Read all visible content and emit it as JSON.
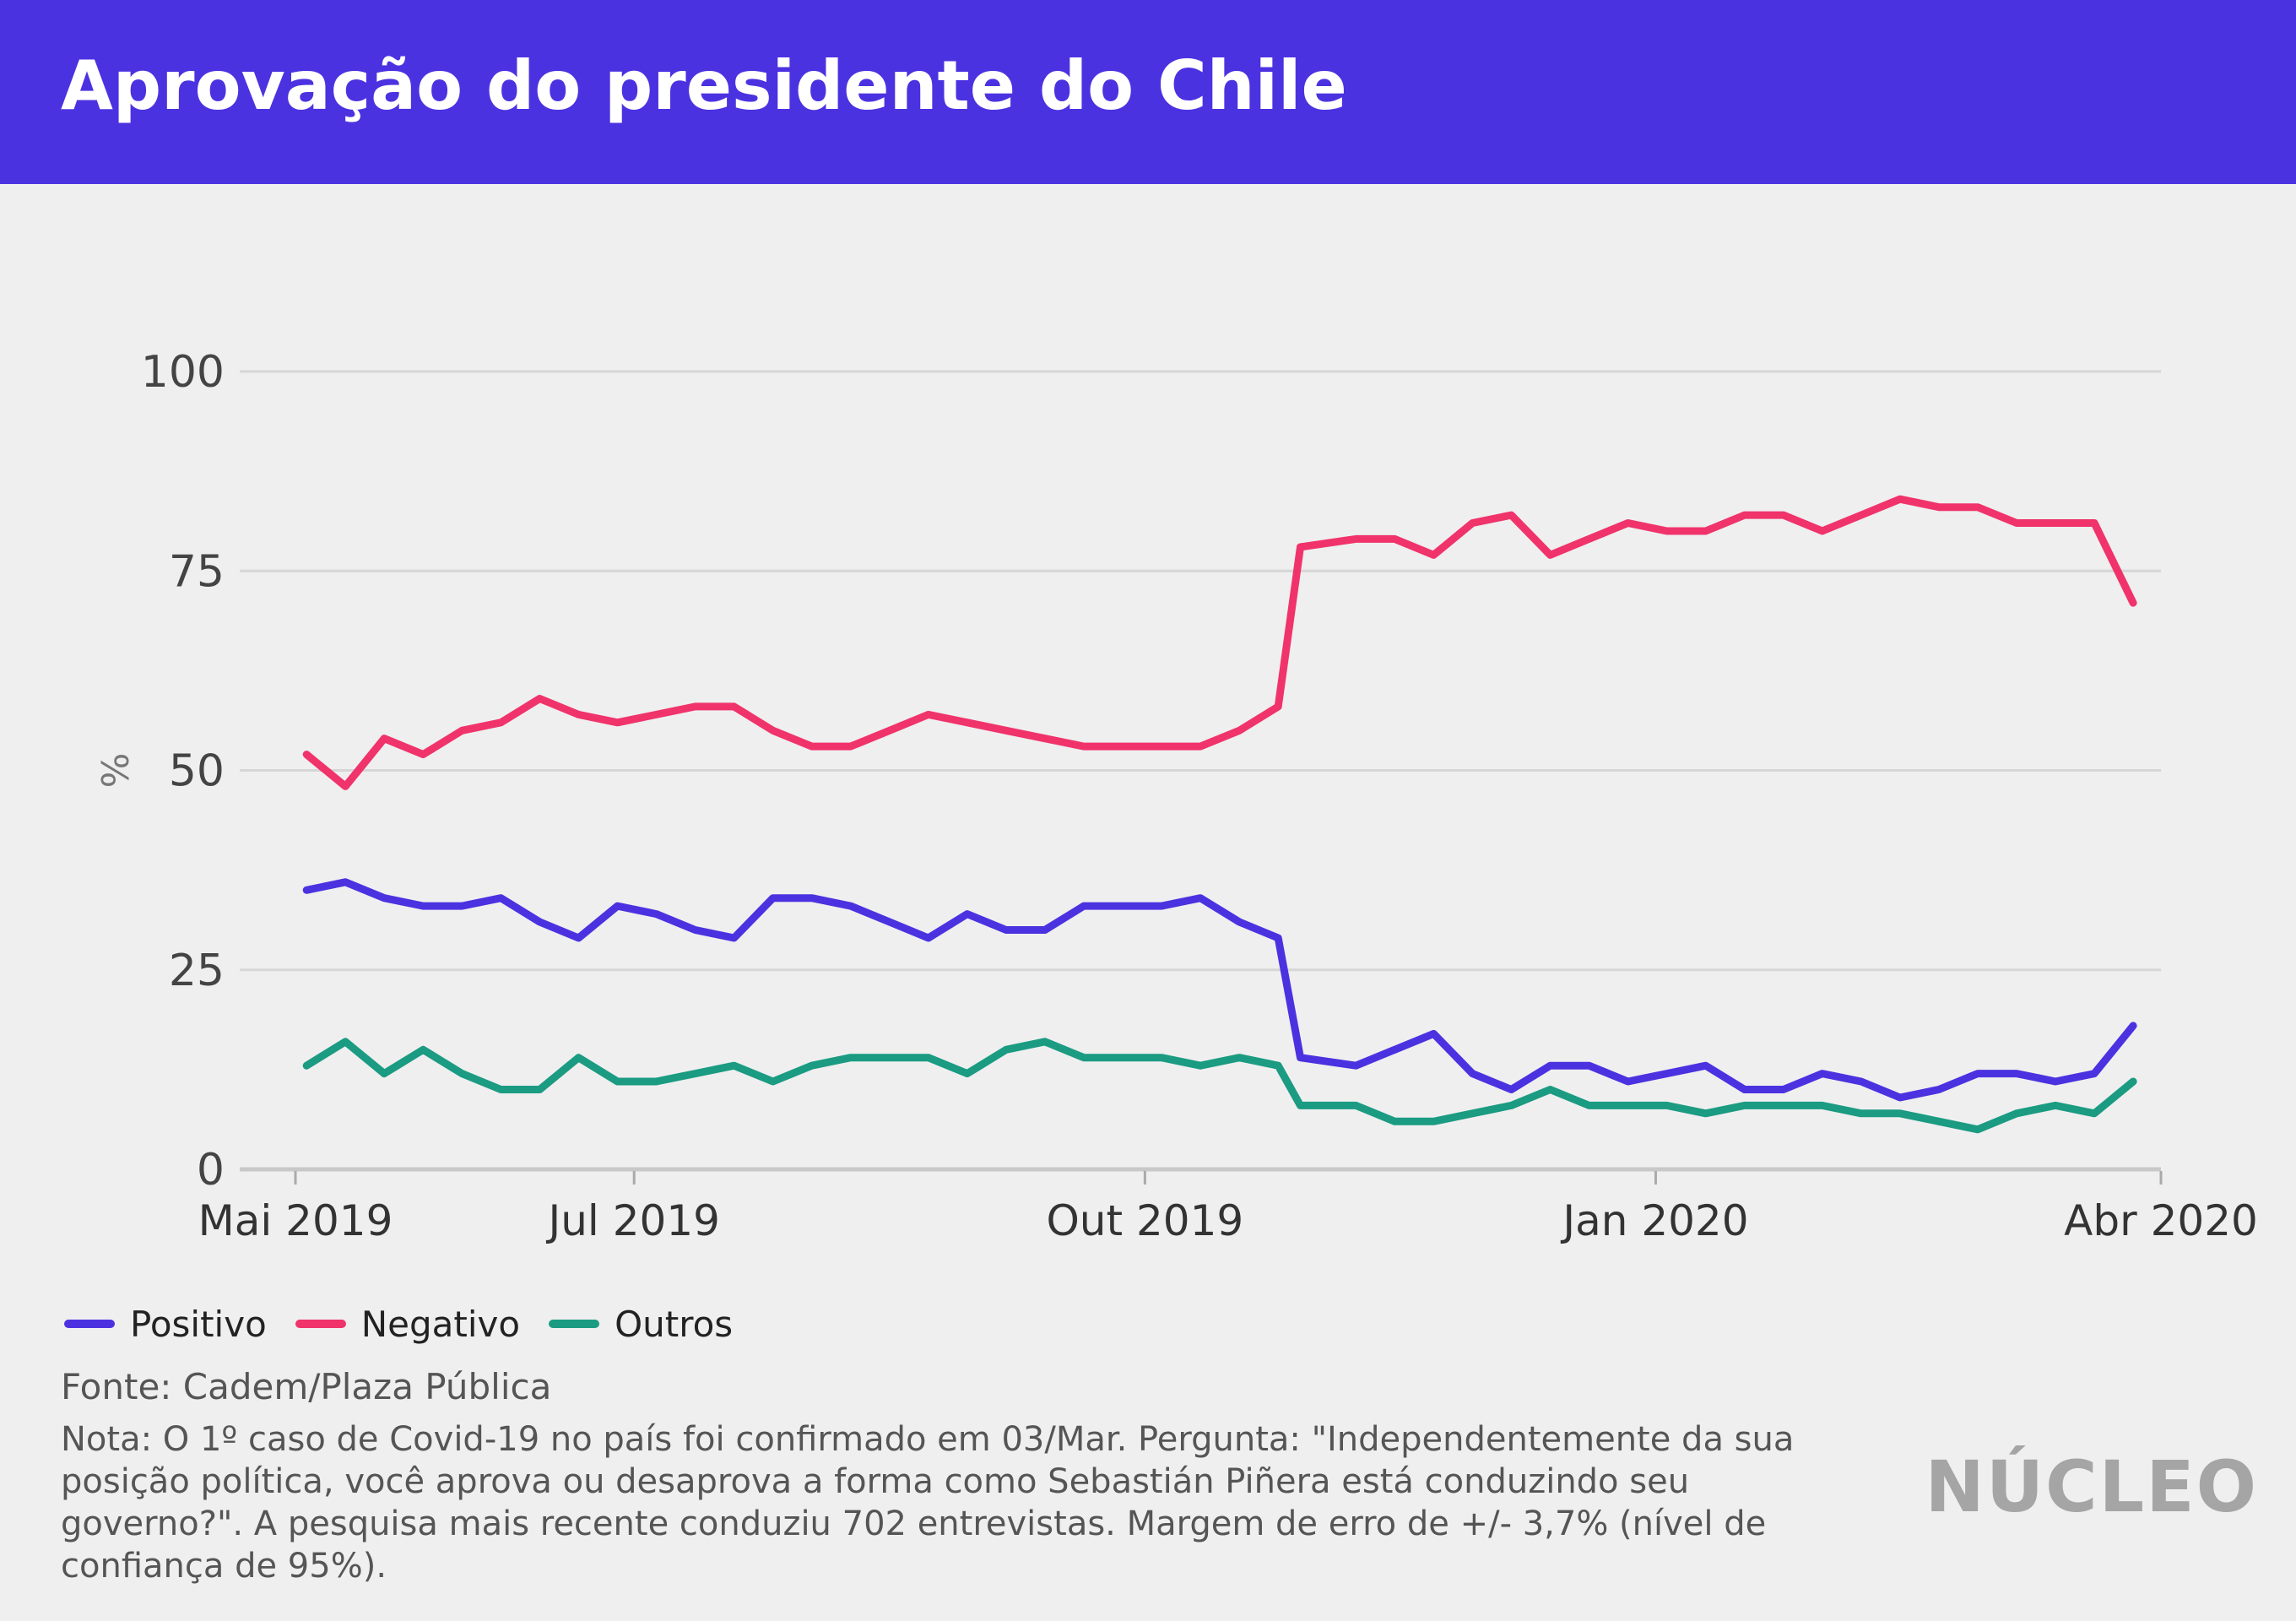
{
  "title": "Aprovação do presidente do Chile",
  "legend": [
    {
      "label": "Positivo",
      "color": "#4b32e0"
    },
    {
      "label": "Negativo",
      "color": "#f0336b"
    },
    {
      "label": "Outros",
      "color": "#1a9b82"
    }
  ],
  "source": "Fonte: Cadem/Plaza Pública",
  "note": "Nota: O 1º caso de Covid-19 no país foi confirmado em 03/Mar. Pergunta: \"Independentemente da sua posição política, você aprova ou desaprova a forma como Sebastián Piñera está conduzindo seu governo?\". A pesquisa mais recente conduziu 702 entrevistas. Margem de erro de +/- 3,7% (nível de confiança de 95%).",
  "logo": "NÚCLEO",
  "chart_data": {
    "type": "line",
    "ylabel": "%",
    "ylim": [
      0,
      100
    ],
    "yticks": [
      0,
      25,
      50,
      75,
      100
    ],
    "xlim": [
      "2019-05-01",
      "2020-04-01"
    ],
    "xticks": [
      {
        "date": "2019-05-01",
        "label": "Mai 2019"
      },
      {
        "date": "2019-07-01",
        "label": "Jul 2019"
      },
      {
        "date": "2019-10-01",
        "label": "Out 2019"
      },
      {
        "date": "2020-01-01",
        "label": "Jan 2020"
      },
      {
        "date": "2020-04-01",
        "label": "Abr 2020"
      }
    ],
    "grid": true,
    "legend_position": "bottom-left",
    "x": [
      "2019-05-03",
      "2019-05-10",
      "2019-05-17",
      "2019-05-24",
      "2019-05-31",
      "2019-06-07",
      "2019-06-14",
      "2019-06-21",
      "2019-06-28",
      "2019-07-05",
      "2019-07-12",
      "2019-07-19",
      "2019-07-26",
      "2019-08-02",
      "2019-08-09",
      "2019-08-16",
      "2019-08-23",
      "2019-08-30",
      "2019-09-06",
      "2019-09-13",
      "2019-09-20",
      "2019-09-27",
      "2019-10-04",
      "2019-10-11",
      "2019-10-18",
      "2019-10-25",
      "2019-10-29",
      "2019-11-08",
      "2019-11-15",
      "2019-11-22",
      "2019-11-29",
      "2019-12-06",
      "2019-12-13",
      "2019-12-20",
      "2019-12-27",
      "2020-01-03",
      "2020-01-10",
      "2020-01-17",
      "2020-01-24",
      "2020-01-31",
      "2020-02-07",
      "2020-02-14",
      "2020-02-21",
      "2020-02-28",
      "2020-03-06",
      "2020-03-13",
      "2020-03-20",
      "2020-03-27"
    ],
    "series": [
      {
        "name": "Positivo",
        "color": "#4b32e0",
        "values": [
          35,
          36,
          34,
          33,
          33,
          34,
          31,
          29,
          33,
          32,
          30,
          29,
          34,
          34,
          33,
          31,
          29,
          32,
          30,
          30,
          33,
          33,
          33,
          34,
          31,
          29,
          14,
          13,
          15,
          17,
          12,
          10,
          13,
          13,
          11,
          12,
          13,
          10,
          10,
          12,
          11,
          9,
          10,
          12,
          12,
          11,
          12,
          18
        ]
      },
      {
        "name": "Negativo",
        "color": "#f0336b",
        "values": [
          52,
          48,
          54,
          52,
          55,
          56,
          59,
          57,
          56,
          57,
          58,
          58,
          55,
          53,
          53,
          55,
          57,
          56,
          55,
          54,
          53,
          53,
          53,
          53,
          55,
          58,
          78,
          79,
          79,
          77,
          81,
          82,
          77,
          79,
          81,
          80,
          80,
          82,
          82,
          80,
          82,
          84,
          83,
          83,
          81,
          81,
          81,
          71
        ]
      },
      {
        "name": "Outros",
        "color": "#1a9b82",
        "values": [
          13,
          16,
          12,
          15,
          12,
          10,
          10,
          14,
          11,
          11,
          12,
          13,
          11,
          13,
          14,
          14,
          14,
          12,
          15,
          16,
          14,
          14,
          14,
          13,
          14,
          13,
          8,
          8,
          6,
          6,
          7,
          8,
          10,
          8,
          8,
          8,
          7,
          8,
          8,
          8,
          7,
          7,
          6,
          5,
          7,
          8,
          7,
          11
        ]
      }
    ]
  }
}
